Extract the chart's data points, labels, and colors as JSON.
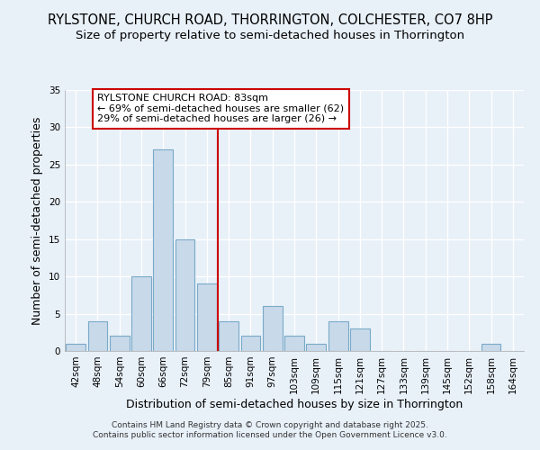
{
  "title1": "RYLSTONE, CHURCH ROAD, THORRINGTON, COLCHESTER, CO7 8HP",
  "title2": "Size of property relative to semi-detached houses in Thorrington",
  "xlabel": "Distribution of semi-detached houses by size in Thorrington",
  "ylabel": "Number of semi-detached properties",
  "categories": [
    "42sqm",
    "48sqm",
    "54sqm",
    "60sqm",
    "66sqm",
    "72sqm",
    "79sqm",
    "85sqm",
    "91sqm",
    "97sqm",
    "103sqm",
    "109sqm",
    "115sqm",
    "121sqm",
    "127sqm",
    "133sqm",
    "139sqm",
    "145sqm",
    "152sqm",
    "158sqm",
    "164sqm"
  ],
  "values": [
    1,
    4,
    2,
    10,
    27,
    15,
    9,
    4,
    2,
    6,
    2,
    1,
    4,
    3,
    0,
    0,
    0,
    0,
    0,
    1,
    0
  ],
  "bar_color": "#c8d9ea",
  "bar_edge_color": "#7aaac8",
  "vline_color": "#cc0000",
  "vline_index": 7,
  "ylim": [
    0,
    35
  ],
  "yticks": [
    0,
    5,
    10,
    15,
    20,
    25,
    30,
    35
  ],
  "annotation_line1": "RYLSTONE CHURCH ROAD: 83sqm",
  "annotation_line2": "← 69% of semi-detached houses are smaller (62)",
  "annotation_line3": "29% of semi-detached houses are larger (26) →",
  "annotation_box_color": "#ffffff",
  "annotation_box_edge": "#cc0000",
  "footer": "Contains HM Land Registry data © Crown copyright and database right 2025.\nContains public sector information licensed under the Open Government Licence v3.0.",
  "bg_color": "#e8f0f8",
  "grid_color": "#d0dce8",
  "title_fontsize": 10.5,
  "subtitle_fontsize": 9.5,
  "tick_fontsize": 7.5,
  "label_fontsize": 9,
  "annotation_fontsize": 8,
  "footer_fontsize": 6.5
}
